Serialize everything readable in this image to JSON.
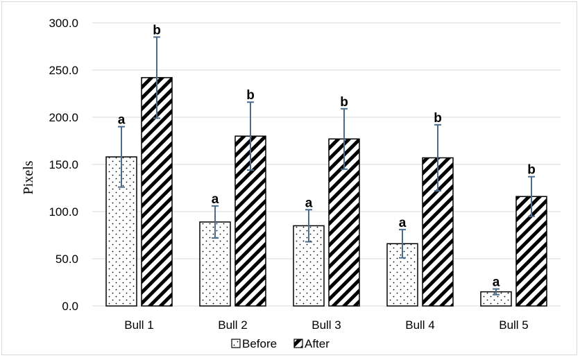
{
  "chart_data": {
    "type": "bar",
    "ylabel": "Pixels",
    "ylim": [
      0,
      300
    ],
    "yticks": [
      "0.0",
      "50.0",
      "100.0",
      "150.0",
      "200.0",
      "250.0",
      "300.0"
    ],
    "grid": true,
    "legend_position": "bottom",
    "categories": [
      "Bull 1",
      "Bull 2",
      "Bull 3",
      "Bull 4",
      "Bull 5"
    ],
    "series": [
      {
        "name": "Before",
        "pattern": "dots",
        "values": [
          158,
          89,
          85,
          66,
          15
        ],
        "error": [
          32,
          17,
          17,
          15,
          3
        ],
        "labels": [
          "a",
          "a",
          "a",
          "a",
          "a"
        ]
      },
      {
        "name": "After",
        "pattern": "diagonal-stripes",
        "values": [
          242,
          180,
          177,
          157,
          116
        ],
        "error": [
          43,
          36,
          32,
          35,
          21
        ],
        "labels": [
          "b",
          "b",
          "b",
          "b",
          "b"
        ]
      }
    ],
    "colors": {
      "bar_stroke": "#000000",
      "error_bar": "#4a6b8a",
      "grid": "#d9d9d9"
    }
  }
}
